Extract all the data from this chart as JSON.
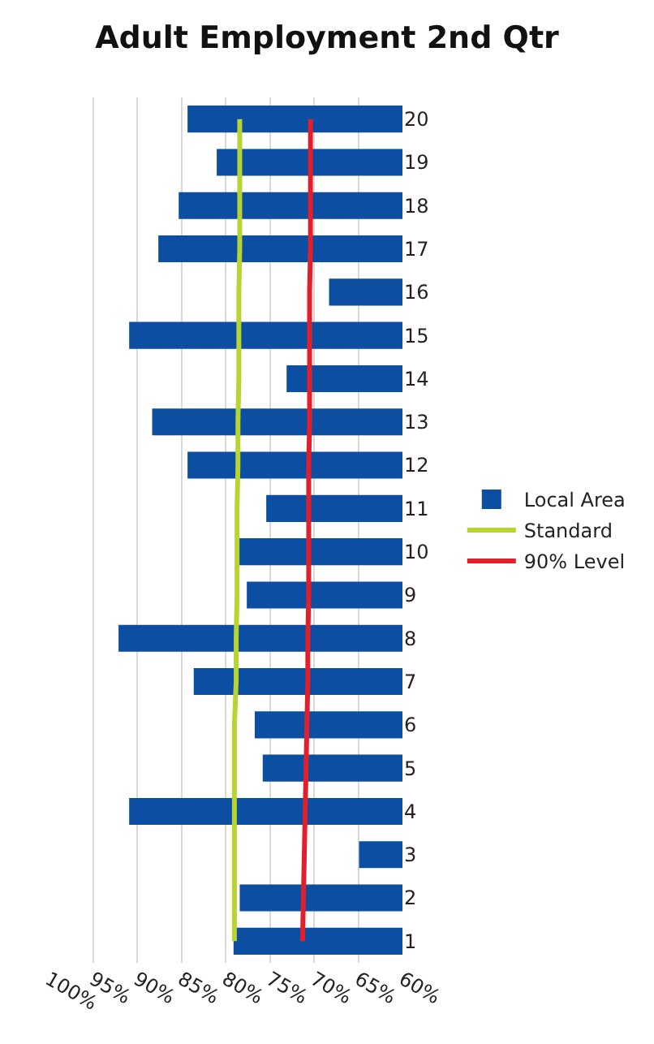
{
  "chart_data": {
    "type": "bar",
    "title": "Adult Employment 2nd Qtr",
    "orientation": "horizontal",
    "categories": [
      "20",
      "19",
      "18",
      "17",
      "16",
      "15",
      "14",
      "13",
      "12",
      "11",
      "10",
      "9",
      "8",
      "7",
      "6",
      "5",
      "4",
      "3",
      "2",
      "1"
    ],
    "series": [
      {
        "name": "Local Area",
        "color": "#0b4ea2",
        "values": [
          84.3,
          81.0,
          85.3,
          87.6,
          68.3,
          90.9,
          73.1,
          88.3,
          84.3,
          75.4,
          78.6,
          77.6,
          92.1,
          83.6,
          76.7,
          75.8,
          90.9,
          64.9,
          78.4,
          79.1
        ]
      },
      {
        "name": "Standard",
        "type": "line",
        "color": "#b8d432",
        "values": [
          78.4,
          78.4,
          78.4,
          78.4,
          78.5,
          78.5,
          78.5,
          78.6,
          78.6,
          78.7,
          78.7,
          78.7,
          78.8,
          78.8,
          79.0,
          79.0,
          79.0,
          79.0,
          79.0,
          79.0
        ]
      },
      {
        "name": "90% Level",
        "type": "line",
        "color": "#e2202c",
        "values": [
          70.4,
          70.4,
          70.4,
          70.4,
          70.5,
          70.5,
          70.5,
          70.5,
          70.6,
          70.6,
          70.6,
          70.6,
          70.7,
          70.7,
          70.8,
          70.9,
          71.0,
          71.1,
          71.2,
          71.3
        ]
      }
    ],
    "xlim": [
      100,
      60
    ],
    "xticks": [
      {
        "value": 100,
        "label": "100%"
      },
      {
        "value": 95,
        "label": "95%"
      },
      {
        "value": 90,
        "label": "90%"
      },
      {
        "value": 85,
        "label": "85%"
      },
      {
        "value": 80,
        "label": "80%"
      },
      {
        "value": 75,
        "label": "75%"
      },
      {
        "value": 70,
        "label": "70%"
      },
      {
        "value": 65,
        "label": "65%"
      },
      {
        "value": 60,
        "label": "60%"
      }
    ],
    "grid": "x",
    "legend": "right",
    "marker": "none",
    "line_style": "solid"
  }
}
